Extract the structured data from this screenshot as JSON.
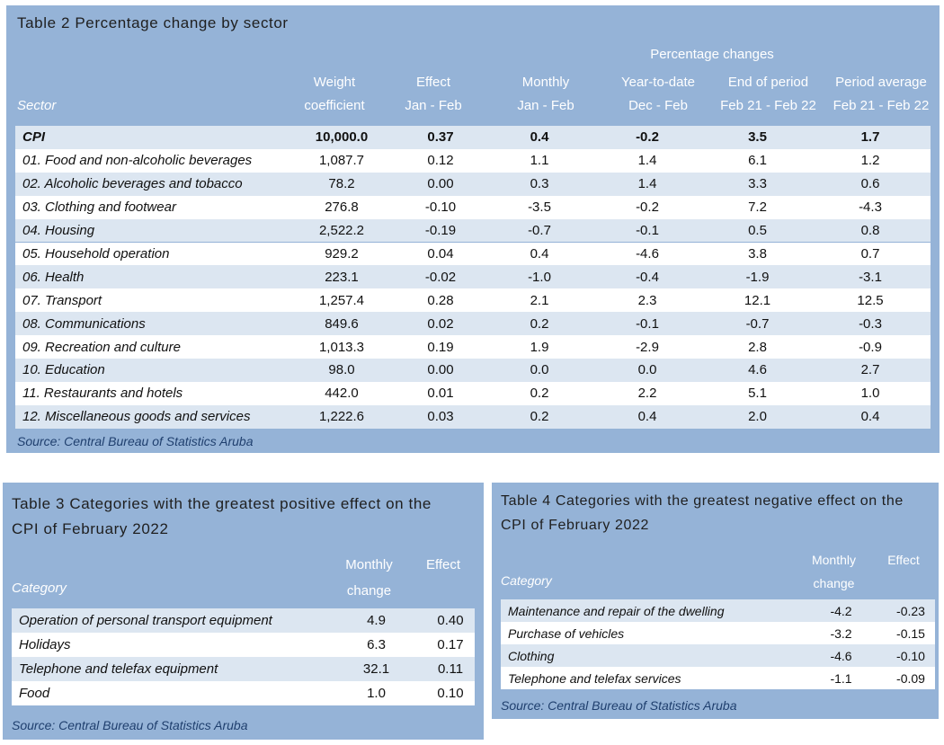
{
  "colors": {
    "panel": "#95b3d7",
    "band": "#dce6f1",
    "white": "#ffffff",
    "source": "#1f3f6e"
  },
  "table2": {
    "title": "Table 2 Percentage change by sector",
    "group_header": "Percentage changes",
    "columns": [
      {
        "line1": "Weight",
        "line2": "coefficient"
      },
      {
        "line1": "Effect",
        "line2": "Jan - Feb"
      },
      {
        "line1": "Monthly",
        "line2": "Jan - Feb"
      },
      {
        "line1": "Year-to-date",
        "line2": "Dec - Feb"
      },
      {
        "line1": "End of period",
        "line2": "Feb 21 - Feb 22"
      },
      {
        "line1": "Period average",
        "line2": "Feb 21 - Feb 22"
      }
    ],
    "row_header": "Sector",
    "rows": [
      {
        "label": "CPI",
        "values": [
          "10,000.0",
          "0.37",
          "0.4",
          "-0.2",
          "3.5",
          "1.7"
        ]
      },
      {
        "label": "01. Food and non-alcoholic beverages",
        "values": [
          "1,087.7",
          "0.12",
          "1.1",
          "1.4",
          "6.1",
          "1.2"
        ]
      },
      {
        "label": "02. Alcoholic beverages and tobacco",
        "values": [
          "78.2",
          "0.00",
          "0.3",
          "1.4",
          "3.3",
          "0.6"
        ]
      },
      {
        "label": "03. Clothing and footwear",
        "values": [
          "276.8",
          "-0.10",
          "-3.5",
          "-0.2",
          "7.2",
          "-4.3"
        ]
      },
      {
        "label": "04. Housing",
        "values": [
          "2,522.2",
          "-0.19",
          "-0.7",
          "-0.1",
          "0.5",
          "0.8"
        ]
      },
      {
        "label": "05. Household operation",
        "values": [
          "929.2",
          "0.04",
          "0.4",
          "-4.6",
          "3.8",
          "0.7"
        ]
      },
      {
        "label": "06. Health",
        "values": [
          "223.1",
          "-0.02",
          "-1.0",
          "-0.4",
          "-1.9",
          "-3.1"
        ]
      },
      {
        "label": "07. Transport",
        "values": [
          "1,257.4",
          "0.28",
          "2.1",
          "2.3",
          "12.1",
          "12.5"
        ]
      },
      {
        "label": "08. Communications",
        "values": [
          "849.6",
          "0.02",
          "0.2",
          "-0.1",
          "-0.7",
          "-0.3"
        ]
      },
      {
        "label": "09. Recreation and culture",
        "values": [
          "1,013.3",
          "0.19",
          "1.9",
          "-2.9",
          "2.8",
          "-0.9"
        ]
      },
      {
        "label": "10. Education",
        "values": [
          "98.0",
          "0.00",
          "0.0",
          "0.0",
          "4.6",
          "2.7"
        ]
      },
      {
        "label": "11. Restaurants and hotels",
        "values": [
          "442.0",
          "0.01",
          "0.2",
          "2.2",
          "5.1",
          "1.0"
        ]
      },
      {
        "label": "12. Miscellaneous goods and services",
        "values": [
          "1,222.6",
          "0.03",
          "0.2",
          "0.4",
          "2.0",
          "0.4"
        ]
      }
    ],
    "source": "Source: Central Bureau of Statistics Aruba"
  },
  "table3": {
    "title_line1": "Table 3 Categories with the greatest positive effect on the",
    "title_line2": "CPI of February 2022",
    "row_header": "Category",
    "col1_line1": "Monthly",
    "col1_line2": "change",
    "col2": "Effect",
    "rows": [
      {
        "label": "Operation of personal transport equipment",
        "change": "4.9",
        "effect": "0.40"
      },
      {
        "label": "Holidays",
        "change": "6.3",
        "effect": "0.17"
      },
      {
        "label": "Telephone and telefax equipment",
        "change": "32.1",
        "effect": "0.11"
      },
      {
        "label": "Food",
        "change": "1.0",
        "effect": "0.10"
      }
    ],
    "source": "Source: Central Bureau of Statistics Aruba"
  },
  "table4": {
    "title_line1": "Table 4 Categories with the greatest negative effect on the",
    "title_line2": "CPI of February 2022",
    "row_header": "Category",
    "col1_line1": "Monthly",
    "col1_line2": "change",
    "col2": "Effect",
    "rows": [
      {
        "label": "Maintenance and repair of the dwelling",
        "change": "-4.2",
        "effect": "-0.23"
      },
      {
        "label": "Purchase of vehicles",
        "change": "-3.2",
        "effect": "-0.15"
      },
      {
        "label": "Clothing",
        "change": "-4.6",
        "effect": "-0.10"
      },
      {
        "label": "Telephone and telefax services",
        "change": "-1.1",
        "effect": "-0.09"
      }
    ],
    "source": "Source: Central Bureau of Statistics Aruba"
  }
}
